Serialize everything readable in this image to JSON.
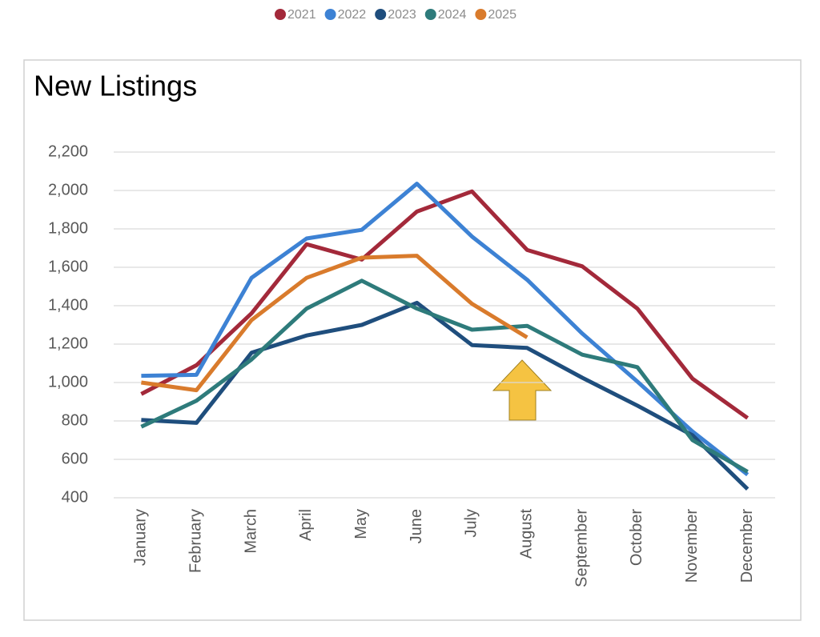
{
  "chart_data": {
    "type": "line",
    "title": "New Listings",
    "categories": [
      "January",
      "February",
      "March",
      "April",
      "May",
      "June",
      "July",
      "August",
      "September",
      "October",
      "November",
      "December"
    ],
    "series": [
      {
        "name": "2021",
        "color": "#a3293a",
        "values": [
          940,
          1090,
          1360,
          1720,
          1640,
          1890,
          1995,
          1690,
          1605,
          1385,
          1020,
          815
        ]
      },
      {
        "name": "2022",
        "color": "#3d82d4",
        "values": [
          1035,
          1040,
          1545,
          1750,
          1795,
          2035,
          1760,
          1535,
          1255,
          1005,
          745,
          520
        ]
      },
      {
        "name": "2023",
        "color": "#1f4e7d",
        "values": [
          805,
          790,
          1155,
          1245,
          1300,
          1415,
          1195,
          1180,
          1025,
          880,
          725,
          445
        ]
      },
      {
        "name": "2024",
        "color": "#2e7b7b",
        "values": [
          770,
          905,
          1120,
          1385,
          1530,
          1385,
          1275,
          1295,
          1145,
          1080,
          700,
          535
        ]
      },
      {
        "name": "2025",
        "color": "#d97b2c",
        "values": [
          1000,
          960,
          1325,
          1545,
          1650,
          1660,
          1410,
          1235,
          null,
          null,
          null,
          null
        ]
      }
    ],
    "ylim": [
      400,
      2200
    ],
    "yticks": [
      {
        "value": 400,
        "label": "400"
      },
      {
        "value": 600,
        "label": "600"
      },
      {
        "value": 800,
        "label": "800"
      },
      {
        "value": 1000,
        "label": "1,000"
      },
      {
        "value": 1200,
        "label": "1,200"
      },
      {
        "value": 1400,
        "label": "1,400"
      },
      {
        "value": 1600,
        "label": "1,600"
      },
      {
        "value": 1800,
        "label": "1,800"
      },
      {
        "value": 2000,
        "label": "2,000"
      },
      {
        "value": 2200,
        "label": "2,200"
      }
    ],
    "grid": true,
    "legend": "top"
  }
}
